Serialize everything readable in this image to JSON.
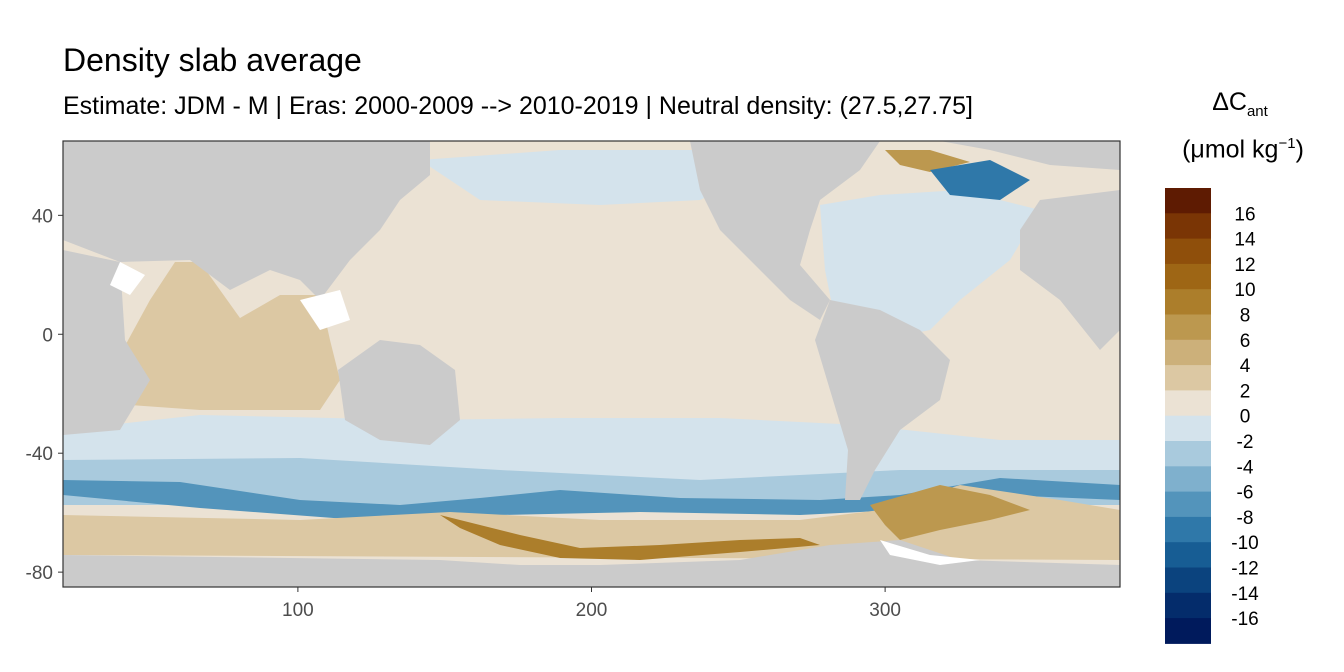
{
  "title": "Density slab average",
  "subtitle": "Estimate: JDM - M | Eras: 2000-2009 --> 2010-2019 | Neutral density: (27.5,27.75]",
  "legend": {
    "title_main": "ΔC",
    "title_sub": "ant",
    "unit_open": "(μmol kg",
    "unit_sup": "−1",
    "unit_close": ")",
    "bins": [
      {
        "label": "16",
        "color": "#5e1b02"
      },
      {
        "label": "14",
        "color": "#7a3505"
      },
      {
        "label": "12",
        "color": "#8f4f0b"
      },
      {
        "label": "10",
        "color": "#9e6615"
      },
      {
        "label": "8",
        "color": "#ac7e2b"
      },
      {
        "label": "6",
        "color": "#bc984f"
      },
      {
        "label": "4",
        "color": "#ccb07a"
      },
      {
        "label": "2",
        "color": "#dcc8a3"
      },
      {
        "label": "0",
        "color": "#ebe2d4"
      },
      {
        "label": "-2",
        "color": "#d4e3ec"
      },
      {
        "label": "-4",
        "color": "#a9cadd"
      },
      {
        "label": "-6",
        "color": "#7fb0cd"
      },
      {
        "label": "-8",
        "color": "#5394bb"
      },
      {
        "label": "-10",
        "color": "#2f78a9"
      },
      {
        "label": "-12",
        "color": "#175d94"
      },
      {
        "label": "-14",
        "color": "#0b437e"
      },
      {
        "label": "-16",
        "color": "#042c6b"
      },
      {
        "label": "",
        "color": "#001a5c"
      }
    ]
  },
  "axes": {
    "x_ticks": [
      100,
      200,
      300
    ],
    "y_ticks": [
      40,
      0,
      -40,
      -80
    ],
    "xlim": [
      20,
      380
    ],
    "ylim": [
      -85,
      65
    ]
  },
  "colors": {
    "land": "#cbcbcb",
    "missing": "#ffffff",
    "frame": "#333333"
  }
}
